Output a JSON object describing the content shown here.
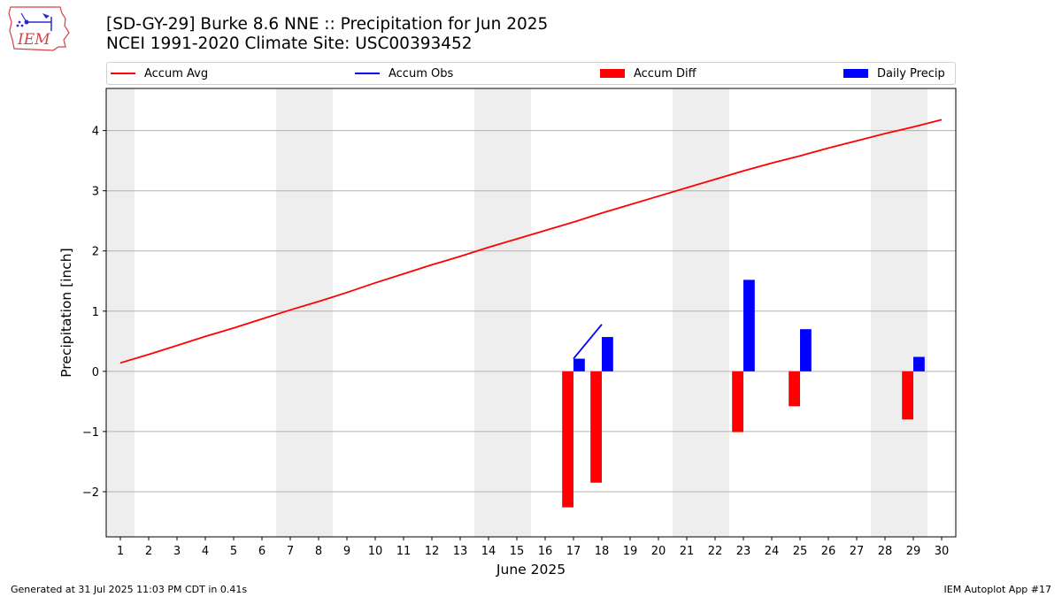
{
  "header": {
    "title_line1": "[SD-GY-29] Burke 8.6 NNE :: Precipitation for Jun 2025",
    "title_line2": "NCEI 1991-2020 Climate Site: USC00393452",
    "logo_text": "IEM"
  },
  "legend": [
    {
      "label": "Accum Avg",
      "kind": "line",
      "color": "#ff0000"
    },
    {
      "label": "Accum Obs",
      "kind": "line",
      "color": "#0000ff"
    },
    {
      "label": "Accum Diff",
      "kind": "box",
      "color": "#ff0000"
    },
    {
      "label": "Daily Precip",
      "kind": "box",
      "color": "#0000ff"
    }
  ],
  "footer": {
    "left": "Generated at 31 Jul 2025 11:03 PM CDT in 0.41s",
    "right": "IEM Autoplot App #17"
  },
  "chart_data": {
    "type": "bar",
    "xlabel": "June 2025",
    "ylabel": "Precipitation [inch]",
    "ylim": [
      -2.75,
      4.7
    ],
    "xlim": [
      0.5,
      30.5
    ],
    "yticks": [
      -2,
      -1,
      0,
      1,
      2,
      3,
      4
    ],
    "ytick_labels": [
      "−2",
      "−1",
      "0",
      "1",
      "2",
      "3",
      "4"
    ],
    "x": [
      1,
      2,
      3,
      4,
      5,
      6,
      7,
      8,
      9,
      10,
      11,
      12,
      13,
      14,
      15,
      16,
      17,
      18,
      19,
      20,
      21,
      22,
      23,
      24,
      25,
      26,
      27,
      28,
      29,
      30
    ],
    "grid": "horizontal",
    "weekend_shading": [
      [
        0.5,
        1.5
      ],
      [
        6.5,
        8.5
      ],
      [
        13.5,
        15.5
      ],
      [
        20.5,
        22.5
      ],
      [
        27.5,
        29.5
      ]
    ],
    "shading_color": "#eeeeee",
    "series": [
      {
        "name": "Accum Avg",
        "type": "line",
        "color": "#ff0000",
        "x": [
          1,
          2,
          3,
          4,
          5,
          6,
          7,
          8,
          9,
          10,
          11,
          12,
          13,
          14,
          15,
          16,
          17,
          18,
          19,
          20,
          21,
          22,
          23,
          24,
          25,
          26,
          27,
          28,
          29,
          30
        ],
        "values": [
          0.14,
          0.28,
          0.43,
          0.58,
          0.72,
          0.87,
          1.02,
          1.16,
          1.31,
          1.47,
          1.62,
          1.77,
          1.91,
          2.06,
          2.2,
          2.34,
          2.48,
          2.63,
          2.77,
          2.91,
          3.05,
          3.19,
          3.33,
          3.46,
          3.58,
          3.71,
          3.83,
          3.95,
          4.06,
          4.18
        ]
      },
      {
        "name": "Accum Obs",
        "type": "line",
        "color": "#0000ff",
        "x": [
          17,
          18
        ],
        "values": [
          0.21,
          0.78
        ]
      },
      {
        "name": "Accum Diff",
        "type": "bar",
        "color": "#ff0000",
        "x": [
          17,
          18,
          23,
          25,
          29
        ],
        "values": [
          -2.26,
          -1.85,
          -1.01,
          -0.58,
          -0.8
        ]
      },
      {
        "name": "Daily Precip",
        "type": "bar",
        "color": "#0000ff",
        "x": [
          17,
          18,
          23,
          25,
          29
        ],
        "values": [
          0.21,
          0.57,
          1.52,
          0.7,
          0.24
        ]
      }
    ]
  }
}
